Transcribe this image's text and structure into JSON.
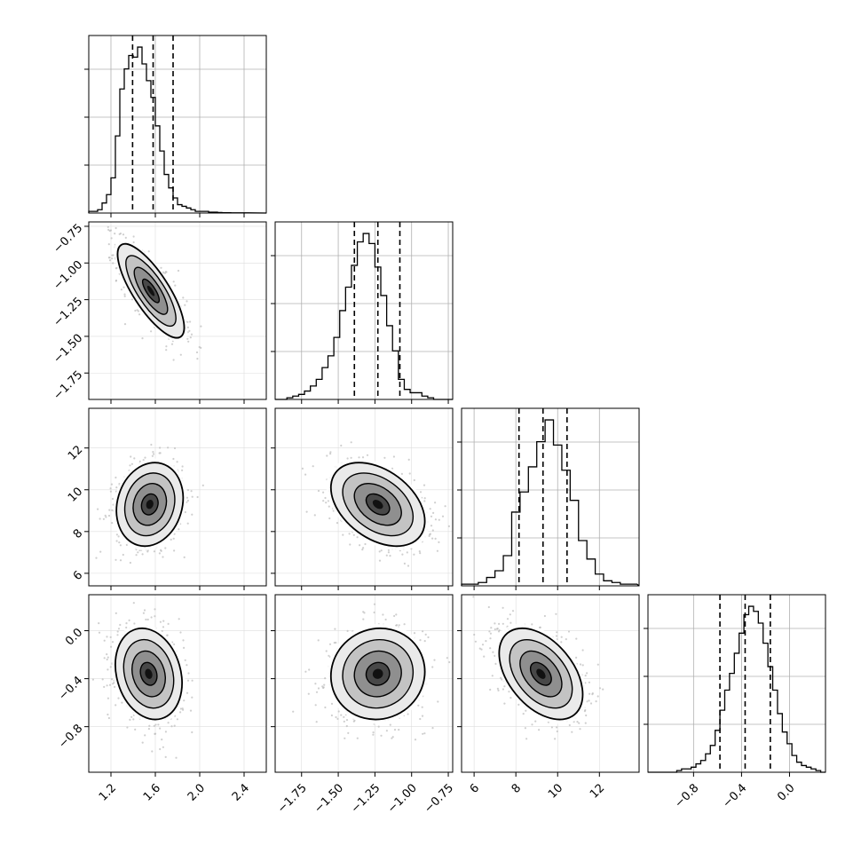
{
  "chart_data": {
    "type": "corner",
    "parameters": [
      {
        "range": [
          1.0,
          2.6
        ],
        "ticks": [
          1.2,
          1.6,
          2.0,
          2.4
        ],
        "tick_labels": [
          "1.2",
          "1.6",
          "2.0",
          "2.4"
        ],
        "quantiles": [
          1.395,
          1.58,
          1.76
        ],
        "hist_bins": [
          1.0,
          1.04,
          1.08,
          1.12,
          1.16,
          1.2,
          1.24,
          1.28,
          1.32,
          1.36,
          1.4,
          1.44,
          1.48,
          1.52,
          1.56,
          1.6,
          1.64,
          1.68,
          1.72,
          1.76,
          1.8,
          1.84,
          1.88,
          1.92,
          1.96,
          2.0,
          2.04,
          2.08,
          2.12,
          2.16,
          2.2,
          2.24,
          2.28,
          2.32,
          2.36,
          2.4,
          2.44
        ],
        "hist_counts": [
          0.01,
          0.01,
          0.02,
          0.06,
          0.11,
          0.21,
          0.46,
          0.74,
          0.86,
          0.94,
          0.93,
          0.99,
          0.89,
          0.79,
          0.69,
          0.52,
          0.37,
          0.23,
          0.15,
          0.09,
          0.05,
          0.04,
          0.03,
          0.02,
          0.01,
          0.01,
          0.01,
          0.005,
          0.005,
          0.003,
          0.002,
          0.002,
          0.001,
          0.001,
          0.001,
          0.001
        ]
      },
      {
        "range": [
          -1.93,
          -0.72
        ],
        "ticks": [
          -1.75,
          -1.5,
          -1.25,
          -1.0,
          -0.75
        ],
        "tick_labels": [
          "−1.75",
          "−1.50",
          "−1.25",
          "−1.00",
          "−0.75"
        ],
        "quantiles": [
          -1.39,
          -1.23,
          -1.08
        ],
        "hist_bins": [
          -1.93,
          -1.89,
          -1.85,
          -1.81,
          -1.77,
          -1.73,
          -1.69,
          -1.65,
          -1.61,
          -1.57,
          -1.53,
          -1.49,
          -1.45,
          -1.41,
          -1.37,
          -1.33,
          -1.29,
          -1.25,
          -1.21,
          -1.17,
          -1.13,
          -1.09,
          -1.05,
          -1.01,
          -0.97,
          -0.93,
          -0.89,
          -0.85,
          -0.81,
          -0.77,
          -0.73
        ],
        "hist_counts": [
          0.0,
          0.0,
          0.01,
          0.02,
          0.03,
          0.05,
          0.08,
          0.12,
          0.19,
          0.26,
          0.37,
          0.53,
          0.67,
          0.8,
          0.94,
          0.99,
          0.93,
          0.79,
          0.62,
          0.44,
          0.29,
          0.12,
          0.06,
          0.04,
          0.04,
          0.02,
          0.01,
          0.0,
          0.0,
          0.0
        ]
      },
      {
        "range": [
          5.4,
          13.9
        ],
        "ticks": [
          6,
          8,
          10,
          12
        ],
        "tick_labels": [
          "6",
          "8",
          "10",
          "12"
        ],
        "quantiles": [
          8.15,
          9.3,
          10.45
        ],
        "hist_bins": [
          5.4,
          5.8,
          6.2,
          6.6,
          7.0,
          7.4,
          7.8,
          8.2,
          8.6,
          9.0,
          9.4,
          9.8,
          10.2,
          10.6,
          11.0,
          11.4,
          11.8,
          12.2,
          12.6,
          13.0,
          13.4,
          13.8
        ],
        "hist_counts": [
          0.01,
          0.01,
          0.02,
          0.05,
          0.09,
          0.18,
          0.44,
          0.56,
          0.71,
          0.86,
          0.99,
          0.84,
          0.69,
          0.51,
          0.27,
          0.16,
          0.07,
          0.03,
          0.02,
          0.01,
          0.01
        ]
      },
      {
        "range": [
          -1.18,
          0.3
        ],
        "ticks": [
          -0.8,
          -0.4,
          0.0
        ],
        "tick_labels": [
          "−0.8",
          "−0.4",
          "0.0"
        ],
        "quantiles": [
          -0.58,
          -0.37,
          -0.16
        ],
        "hist_bins": [
          -1.18,
          -1.14,
          -1.1,
          -1.06,
          -1.02,
          -0.98,
          -0.94,
          -0.9,
          -0.86,
          -0.82,
          -0.78,
          -0.74,
          -0.7,
          -0.66,
          -0.62,
          -0.58,
          -0.54,
          -0.5,
          -0.46,
          -0.42,
          -0.38,
          -0.34,
          -0.3,
          -0.26,
          -0.22,
          -0.18,
          -0.14,
          -0.1,
          -0.06,
          -0.02,
          0.02,
          0.06,
          0.1,
          0.14,
          0.18,
          0.22,
          0.26,
          0.3
        ],
        "hist_counts": [
          0.0,
          0.0,
          0.0,
          0.0,
          0.0,
          0.0,
          0.01,
          0.02,
          0.02,
          0.03,
          0.05,
          0.07,
          0.11,
          0.16,
          0.25,
          0.37,
          0.49,
          0.59,
          0.71,
          0.83,
          0.94,
          0.99,
          0.96,
          0.89,
          0.77,
          0.63,
          0.49,
          0.35,
          0.24,
          0.17,
          0.1,
          0.06,
          0.04,
          0.03,
          0.02,
          0.01,
          0.0
        ]
      }
    ],
    "pairs": [
      {
        "row": 1,
        "col": 0,
        "mean": [
          1.56,
          -1.19
        ],
        "std": [
          0.15,
          0.16
        ],
        "corr": -0.78
      },
      {
        "row": 2,
        "col": 0,
        "mean": [
          1.55,
          9.3
        ],
        "std": [
          0.15,
          1.0
        ],
        "corr": 0.15
      },
      {
        "row": 2,
        "col": 1,
        "mean": [
          -1.23,
          9.3
        ],
        "std": [
          0.16,
          1.0
        ],
        "corr": -0.4
      },
      {
        "row": 3,
        "col": 0,
        "mean": [
          1.54,
          -0.36
        ],
        "std": [
          0.15,
          0.19
        ],
        "corr": -0.2
      },
      {
        "row": 3,
        "col": 1,
        "mean": [
          -1.23,
          -0.36
        ],
        "std": [
          0.16,
          0.19
        ],
        "corr": 0.05
      },
      {
        "row": 3,
        "col": 2,
        "mean": [
          9.2,
          -0.36
        ],
        "std": [
          1.0,
          0.19
        ],
        "corr": -0.45
      }
    ],
    "contour_levels_sigma": [
      0.5,
      1.0,
      1.5,
      2.0
    ],
    "grid": true,
    "colors": {
      "line": "#000000",
      "points": "#bbbbbb",
      "grid": "#b0b0b0",
      "frame": "#000000"
    }
  }
}
